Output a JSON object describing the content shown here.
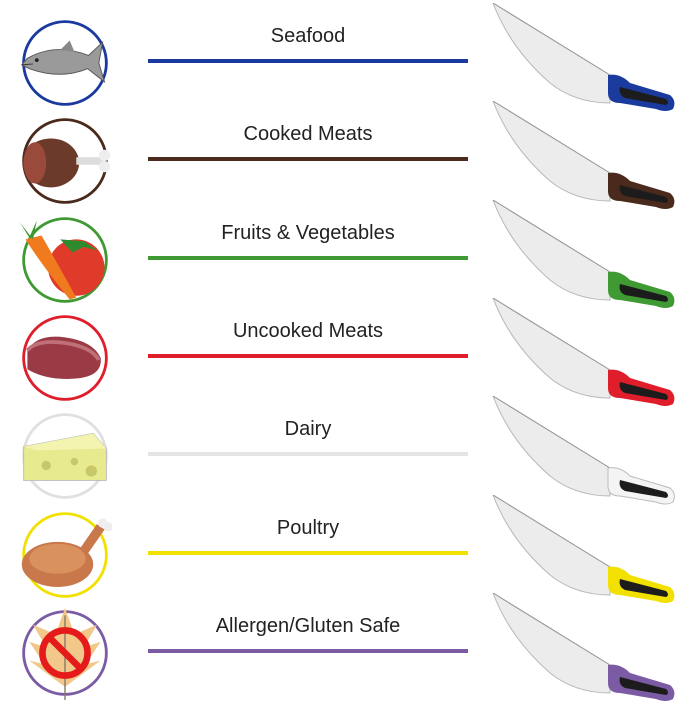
{
  "rows": [
    {
      "label": "Seafood",
      "color": "#1b3a9e",
      "icon": "fish-icon"
    },
    {
      "label": "Cooked Meats",
      "color": "#4a2a1c",
      "icon": "cooked-ham-icon"
    },
    {
      "label": "Fruits & Vegetables",
      "color": "#3f9a33",
      "icon": "tomato-carrot-icon"
    },
    {
      "label": "Uncooked Meats",
      "color": "#e01e2b",
      "icon": "raw-steak-icon"
    },
    {
      "label": "Dairy",
      "color": "#e4e4e4",
      "icon": "cheese-icon"
    },
    {
      "label": "Poultry",
      "color": "#f2e100",
      "icon": "roast-chicken-icon"
    },
    {
      "label": "Allergen/Gluten Safe",
      "color": "#7b5ba3",
      "icon": "no-gluten-icon"
    }
  ]
}
